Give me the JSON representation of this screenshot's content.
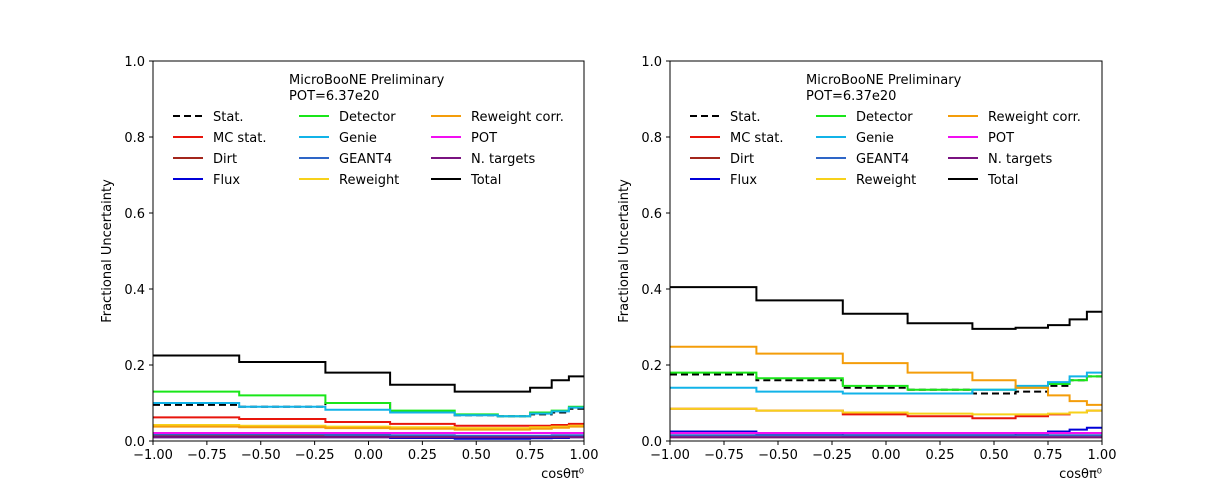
{
  "figure": {
    "panels_label": "MicroBooNE fractional uncertainty panels"
  },
  "chart_data": [
    {
      "type": "line",
      "style": "step",
      "annotation": [
        "MicroBooNE Preliminary",
        "POT=6.37e20"
      ],
      "xlabel": "cosθπ⁰",
      "ylabel": "Fractional Uncertainty",
      "xlim": [
        -1.0,
        1.0
      ],
      "ylim": [
        0.0,
        1.0
      ],
      "xticks": [
        "−1.00",
        "−0.75",
        "−0.50",
        "−0.25",
        "0.00",
        "0.25",
        "0.50",
        "0.75",
        "1.00"
      ],
      "yticks": [
        "0.0",
        "0.2",
        "0.4",
        "0.6",
        "0.8",
        "1.0"
      ],
      "grid": false,
      "legend_position": "top-center",
      "bin_edges": [
        -1.0,
        -0.6,
        -0.2,
        0.1,
        0.4,
        0.6,
        0.75,
        0.85,
        0.93,
        1.0
      ],
      "series": [
        {
          "name": "Stat.",
          "color": "#000000",
          "dash": true,
          "values": [
            0.095,
            0.09,
            0.1,
            0.075,
            0.068,
            0.065,
            0.07,
            0.075,
            0.085
          ]
        },
        {
          "name": "MC stat.",
          "color": "#e8150c",
          "values": [
            0.062,
            0.058,
            0.05,
            0.045,
            0.04,
            0.04,
            0.04,
            0.042,
            0.045
          ]
        },
        {
          "name": "Dirt",
          "color": "#a3261c",
          "values": [
            0.012,
            0.012,
            0.012,
            0.011,
            0.01,
            0.01,
            0.011,
            0.012,
            0.012
          ]
        },
        {
          "name": "Flux",
          "color": "#0000d8",
          "values": [
            0.01,
            0.01,
            0.01,
            0.008,
            0.006,
            0.006,
            0.007,
            0.008,
            0.01
          ]
        },
        {
          "name": "Detector",
          "color": "#19e619",
          "values": [
            0.13,
            0.12,
            0.1,
            0.08,
            0.07,
            0.065,
            0.075,
            0.08,
            0.09
          ]
        },
        {
          "name": "Genie",
          "color": "#11b3e8",
          "values": [
            0.1,
            0.09,
            0.082,
            0.075,
            0.068,
            0.065,
            0.072,
            0.078,
            0.088
          ]
        },
        {
          "name": "GEANT4",
          "color": "#2e66c7",
          "values": [
            0.017,
            0.017,
            0.016,
            0.015,
            0.014,
            0.014,
            0.014,
            0.015,
            0.015
          ]
        },
        {
          "name": "Reweight",
          "color": "#f7d11a",
          "values": [
            0.042,
            0.04,
            0.038,
            0.036,
            0.034,
            0.034,
            0.036,
            0.038,
            0.04
          ]
        },
        {
          "name": "Reweight corr.",
          "color": "#f49d0a",
          "values": [
            0.038,
            0.036,
            0.034,
            0.032,
            0.03,
            0.03,
            0.032,
            0.035,
            0.038
          ]
        },
        {
          "name": "POT",
          "color": "#f20ef2",
          "values": [
            0.021,
            0.021,
            0.021,
            0.021,
            0.021,
            0.021,
            0.021,
            0.021,
            0.021
          ]
        },
        {
          "name": "N. targets",
          "color": "#7a1380",
          "values": [
            0.01,
            0.01,
            0.01,
            0.01,
            0.01,
            0.01,
            0.01,
            0.01,
            0.01
          ]
        },
        {
          "name": "Total",
          "color": "#000000",
          "values": [
            0.225,
            0.208,
            0.18,
            0.148,
            0.13,
            0.13,
            0.14,
            0.16,
            0.17
          ]
        }
      ]
    },
    {
      "type": "line",
      "style": "step",
      "annotation": [
        "MicroBooNE Preliminary",
        "POT=6.37e20"
      ],
      "xlabel": "cosθπ⁰",
      "ylabel": "Fractional Uncertainty",
      "xlim": [
        -1.0,
        1.0
      ],
      "ylim": [
        0.0,
        1.0
      ],
      "xticks": [
        "−1.00",
        "−0.75",
        "−0.50",
        "−0.25",
        "0.00",
        "0.25",
        "0.50",
        "0.75",
        "1.00"
      ],
      "yticks": [
        "0.0",
        "0.2",
        "0.4",
        "0.6",
        "0.8",
        "1.0"
      ],
      "grid": false,
      "legend_position": "top-center",
      "bin_edges": [
        -1.0,
        -0.6,
        -0.2,
        0.1,
        0.4,
        0.6,
        0.75,
        0.85,
        0.93,
        1.0
      ],
      "series": [
        {
          "name": "Stat.",
          "color": "#000000",
          "dash": true,
          "values": [
            0.175,
            0.16,
            0.14,
            0.135,
            0.125,
            0.13,
            0.145,
            0.16,
            0.17
          ]
        },
        {
          "name": "MC stat.",
          "color": "#e8150c",
          "values": [
            0.085,
            0.08,
            0.07,
            0.065,
            0.06,
            0.065,
            0.07,
            0.075,
            0.08
          ]
        },
        {
          "name": "Dirt",
          "color": "#a3261c",
          "values": [
            0.01,
            0.01,
            0.01,
            0.01,
            0.01,
            0.01,
            0.01,
            0.01,
            0.01
          ]
        },
        {
          "name": "Flux",
          "color": "#0000d8",
          "values": [
            0.025,
            0.02,
            0.015,
            0.015,
            0.015,
            0.02,
            0.025,
            0.03,
            0.035
          ]
        },
        {
          "name": "Detector",
          "color": "#19e619",
          "values": [
            0.18,
            0.165,
            0.145,
            0.135,
            0.135,
            0.14,
            0.15,
            0.16,
            0.17
          ]
        },
        {
          "name": "Genie",
          "color": "#11b3e8",
          "values": [
            0.14,
            0.13,
            0.125,
            0.125,
            0.135,
            0.145,
            0.155,
            0.17,
            0.18
          ]
        },
        {
          "name": "GEANT4",
          "color": "#2e66c7",
          "values": [
            0.015,
            0.015,
            0.015,
            0.015,
            0.015,
            0.015,
            0.015,
            0.015,
            0.015
          ]
        },
        {
          "name": "Reweight",
          "color": "#f7d11a",
          "values": [
            0.085,
            0.08,
            0.075,
            0.072,
            0.07,
            0.07,
            0.072,
            0.075,
            0.08
          ]
        },
        {
          "name": "Reweight corr.",
          "color": "#f49d0a",
          "values": [
            0.248,
            0.23,
            0.205,
            0.18,
            0.16,
            0.14,
            0.12,
            0.105,
            0.095
          ]
        },
        {
          "name": "POT",
          "color": "#f20ef2",
          "values": [
            0.021,
            0.021,
            0.021,
            0.021,
            0.021,
            0.021,
            0.021,
            0.021,
            0.021
          ]
        },
        {
          "name": "N. targets",
          "color": "#7a1380",
          "values": [
            0.01,
            0.01,
            0.01,
            0.01,
            0.01,
            0.01,
            0.01,
            0.01,
            0.01
          ]
        },
        {
          "name": "Total",
          "color": "#000000",
          "values": [
            0.405,
            0.37,
            0.335,
            0.31,
            0.295,
            0.298,
            0.305,
            0.32,
            0.34
          ]
        }
      ]
    }
  ]
}
